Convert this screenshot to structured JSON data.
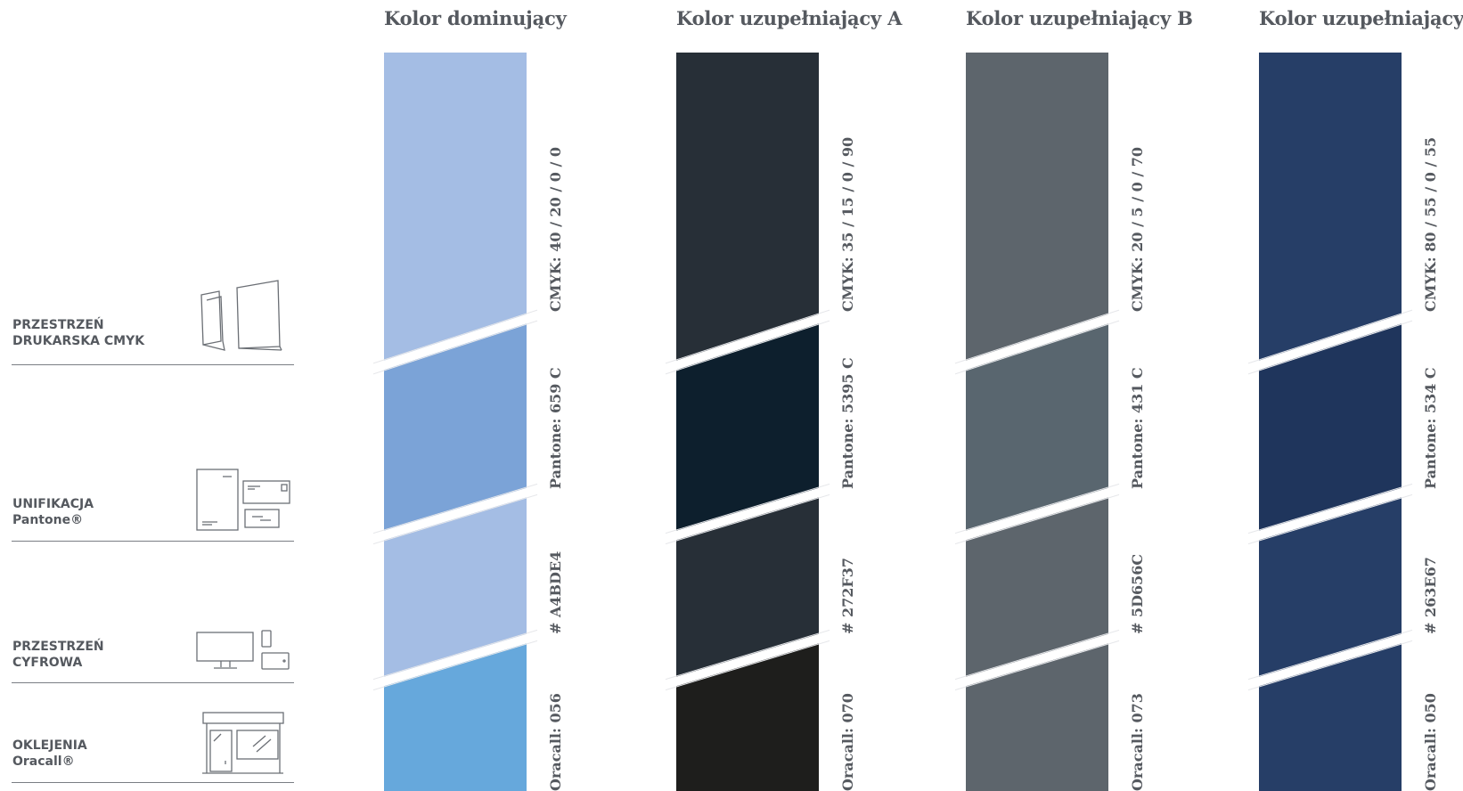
{
  "left_groups": [
    {
      "line1": "PRZESTRZEŃ",
      "line2": "DRUKARSKA CMYK",
      "icon": "folder-icon"
    },
    {
      "line1": "UNIFIKACJA",
      "line2": "Pantone®",
      "icon": "stationery-icon"
    },
    {
      "line1": "PRZESTRZEŃ",
      "line2": "CYFROWA",
      "icon": "devices-icon"
    },
    {
      "line1": "OKLEJENIA",
      "line2": "Oracall®",
      "icon": "storefront-icon"
    }
  ],
  "columns": [
    {
      "title": "Kolor dominujący",
      "colors": [
        "#A4BDE4",
        "#7BA3D7",
        "#A4BDE4",
        "#66A8DC"
      ],
      "cmyk": "CMYK: 40 / 20 / 0 / 0",
      "pantone": "Pantone: 659 C",
      "hex": "# A4BDE4",
      "oracall": "Oracall: 056"
    },
    {
      "title": "Kolor uzupełniający A",
      "colors": [
        "#272F37",
        "#0D1F2D",
        "#272F37",
        "#1E1E1C"
      ],
      "cmyk": "CMYK: 35 / 15 / 0 / 90",
      "pantone": "Pantone: 5395 C",
      "hex": "# 272F37",
      "oracall": "Oracall: 070"
    },
    {
      "title": "Kolor uzupełniający B",
      "colors": [
        "#5D656C",
        "#59666F",
        "#5D656C",
        "#5D656C"
      ],
      "cmyk": "CMYK: 20 / 5 / 0 / 70",
      "pantone": "Pantone: 431 C",
      "hex": "# 5D656C",
      "oracall": "Oracall: 073"
    },
    {
      "title": "Kolor uzupełniający C",
      "colors": [
        "#263E67",
        "#1F355C",
        "#263E67",
        "#263E67"
      ],
      "cmyk": "CMYK: 80 / 55 / 0 / 55",
      "pantone": "Pantone: 534 C",
      "hex": "# 263E67",
      "oracall": "Oracall: 050"
    }
  ]
}
